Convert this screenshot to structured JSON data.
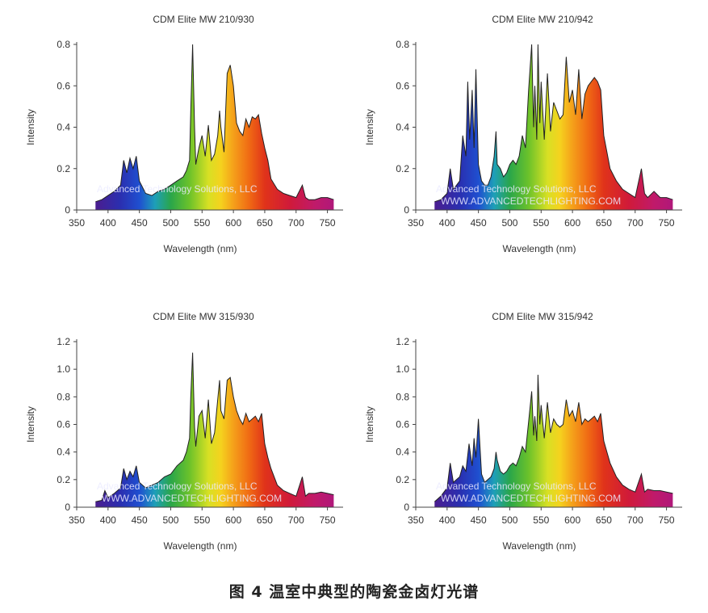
{
  "figure": {
    "caption": "图 4 温室中典型的陶瓷金卤灯光谱"
  },
  "colors": {
    "axis": "#444444",
    "outline": "#222222"
  },
  "chart_data": [
    {
      "type": "area",
      "title": "CDM Elite MW 210/930",
      "xlabel": "Wavelength (nm)",
      "ylabel": "Intensity",
      "xlim": [
        350,
        775
      ],
      "ylim": [
        0,
        0.8
      ],
      "xticks": [
        350,
        400,
        450,
        500,
        550,
        600,
        650,
        700,
        750
      ],
      "yticks": [
        0,
        0.2,
        0.4,
        0.6,
        0.8
      ],
      "ytick_labels": [
        "0",
        "0.2",
        "0.4",
        "0.6",
        "0.8"
      ],
      "watermark": [
        "Advanced Technology Solutions, LLC"
      ],
      "x": [
        380,
        390,
        400,
        410,
        420,
        425,
        430,
        435,
        440,
        445,
        450,
        460,
        470,
        480,
        490,
        500,
        510,
        520,
        525,
        530,
        532,
        535,
        538,
        540,
        545,
        550,
        555,
        560,
        565,
        570,
        575,
        578,
        580,
        585,
        590,
        595,
        600,
        605,
        610,
        615,
        620,
        625,
        630,
        635,
        640,
        645,
        650,
        655,
        660,
        670,
        680,
        690,
        700,
        710,
        715,
        720,
        730,
        740,
        750,
        760
      ],
      "y": [
        0.04,
        0.05,
        0.07,
        0.09,
        0.12,
        0.24,
        0.18,
        0.25,
        0.2,
        0.26,
        0.14,
        0.08,
        0.07,
        0.09,
        0.1,
        0.12,
        0.14,
        0.16,
        0.19,
        0.24,
        0.48,
        0.8,
        0.4,
        0.22,
        0.3,
        0.36,
        0.26,
        0.41,
        0.24,
        0.27,
        0.36,
        0.48,
        0.4,
        0.28,
        0.66,
        0.7,
        0.6,
        0.42,
        0.38,
        0.36,
        0.44,
        0.4,
        0.45,
        0.44,
        0.46,
        0.37,
        0.3,
        0.24,
        0.15,
        0.1,
        0.08,
        0.07,
        0.06,
        0.12,
        0.06,
        0.05,
        0.05,
        0.06,
        0.06,
        0.05
      ]
    },
    {
      "type": "area",
      "title": "CDM Elite MW 210/942",
      "xlabel": "Wavelength (nm)",
      "ylabel": "Intensity",
      "xlim": [
        350,
        775
      ],
      "ylim": [
        0,
        0.8
      ],
      "xticks": [
        350,
        400,
        450,
        500,
        550,
        600,
        650,
        700,
        750
      ],
      "yticks": [
        0,
        0.2,
        0.4,
        0.6,
        0.8
      ],
      "ytick_labels": [
        "0",
        "0.2",
        "0.4",
        "0.6",
        "0.8"
      ],
      "watermark": [
        "Advanced Technology Solutions, LLC",
        "WWW.ADVANCEDTECHLIGHTING.COM"
      ],
      "x": [
        380,
        390,
        400,
        405,
        410,
        415,
        420,
        425,
        430,
        433,
        436,
        440,
        443,
        446,
        450,
        455,
        460,
        465,
        470,
        475,
        478,
        480,
        485,
        490,
        495,
        500,
        505,
        510,
        515,
        520,
        525,
        530,
        535,
        538,
        540,
        543,
        545,
        548,
        550,
        555,
        560,
        565,
        570,
        575,
        580,
        585,
        590,
        595,
        600,
        605,
        610,
        615,
        620,
        625,
        630,
        635,
        640,
        645,
        650,
        655,
        660,
        670,
        680,
        690,
        700,
        710,
        715,
        720,
        730,
        740,
        750,
        760
      ],
      "y": [
        0.04,
        0.05,
        0.08,
        0.2,
        0.1,
        0.12,
        0.14,
        0.36,
        0.26,
        0.62,
        0.34,
        0.58,
        0.3,
        0.68,
        0.22,
        0.14,
        0.12,
        0.12,
        0.16,
        0.26,
        0.38,
        0.22,
        0.2,
        0.16,
        0.18,
        0.22,
        0.24,
        0.22,
        0.26,
        0.36,
        0.3,
        0.58,
        0.8,
        0.4,
        0.6,
        0.34,
        0.8,
        0.42,
        0.62,
        0.34,
        0.66,
        0.38,
        0.52,
        0.48,
        0.44,
        0.46,
        0.74,
        0.52,
        0.58,
        0.46,
        0.68,
        0.44,
        0.56,
        0.6,
        0.62,
        0.64,
        0.62,
        0.58,
        0.36,
        0.28,
        0.2,
        0.14,
        0.1,
        0.08,
        0.06,
        0.2,
        0.08,
        0.06,
        0.09,
        0.06,
        0.06,
        0.05
      ]
    },
    {
      "type": "area",
      "title": "CDM Elite MW 315/930",
      "xlabel": "Wavelength (nm)",
      "ylabel": "Intensity",
      "xlim": [
        350,
        775
      ],
      "ylim": [
        0,
        1.2
      ],
      "xticks": [
        350,
        400,
        450,
        500,
        550,
        600,
        650,
        700,
        750
      ],
      "yticks": [
        0,
        0.2,
        0.4,
        0.6,
        0.8,
        1.0,
        1.2
      ],
      "ytick_labels": [
        "0",
        "0.2",
        "0.4",
        "0.6",
        "0.8",
        "1.0",
        "1.2"
      ],
      "watermark": [
        "Advanced Technology Solutions, LLC",
        "WWW.ADVANCEDTECHLIGHTING.COM"
      ],
      "x": [
        380,
        390,
        395,
        400,
        410,
        420,
        425,
        430,
        435,
        440,
        445,
        450,
        460,
        470,
        480,
        490,
        500,
        510,
        520,
        525,
        530,
        532,
        535,
        538,
        540,
        545,
        550,
        555,
        560,
        565,
        570,
        575,
        578,
        580,
        585,
        590,
        595,
        600,
        605,
        610,
        615,
        620,
        625,
        630,
        635,
        640,
        645,
        650,
        655,
        660,
        670,
        680,
        690,
        700,
        710,
        715,
        720,
        730,
        740,
        750,
        760
      ],
      "y": [
        0.04,
        0.05,
        0.12,
        0.07,
        0.1,
        0.14,
        0.28,
        0.2,
        0.26,
        0.22,
        0.3,
        0.18,
        0.14,
        0.16,
        0.18,
        0.22,
        0.24,
        0.3,
        0.34,
        0.4,
        0.5,
        0.8,
        1.12,
        0.58,
        0.44,
        0.66,
        0.7,
        0.5,
        0.78,
        0.46,
        0.54,
        0.78,
        0.92,
        0.7,
        0.64,
        0.92,
        0.94,
        0.8,
        0.7,
        0.64,
        0.6,
        0.68,
        0.62,
        0.64,
        0.66,
        0.62,
        0.68,
        0.46,
        0.36,
        0.28,
        0.16,
        0.12,
        0.1,
        0.08,
        0.22,
        0.08,
        0.1,
        0.1,
        0.11,
        0.1,
        0.09
      ]
    },
    {
      "type": "area",
      "title": "CDM Elite MW 315/942",
      "xlabel": "Wavelength (nm)",
      "ylabel": "Intensity",
      "xlim": [
        350,
        775
      ],
      "ylim": [
        0,
        1.2
      ],
      "xticks": [
        350,
        400,
        450,
        500,
        550,
        600,
        650,
        700,
        750
      ],
      "yticks": [
        0,
        0.2,
        0.4,
        0.6,
        0.8,
        1.0,
        1.2
      ],
      "ytick_labels": [
        "0",
        "0.2",
        "0.4",
        "0.6",
        "0.8",
        "1.0",
        "1.2"
      ],
      "watermark": [
        "Advanced Technology Solutions, LLC",
        "WWW.ADVANCEDTECHLIGHTING.COM"
      ],
      "x": [
        380,
        390,
        400,
        405,
        410,
        415,
        420,
        425,
        430,
        435,
        440,
        443,
        446,
        450,
        455,
        460,
        465,
        470,
        475,
        478,
        480,
        485,
        490,
        495,
        500,
        505,
        510,
        515,
        520,
        525,
        530,
        535,
        538,
        540,
        543,
        545,
        548,
        550,
        555,
        560,
        565,
        570,
        575,
        580,
        585,
        590,
        595,
        600,
        605,
        610,
        615,
        620,
        625,
        630,
        635,
        640,
        645,
        650,
        655,
        660,
        670,
        680,
        690,
        700,
        710,
        715,
        720,
        730,
        740,
        750,
        760
      ],
      "y": [
        0.04,
        0.08,
        0.14,
        0.32,
        0.18,
        0.2,
        0.22,
        0.3,
        0.26,
        0.46,
        0.3,
        0.5,
        0.36,
        0.64,
        0.24,
        0.18,
        0.2,
        0.22,
        0.28,
        0.4,
        0.34,
        0.26,
        0.24,
        0.26,
        0.3,
        0.32,
        0.3,
        0.36,
        0.44,
        0.4,
        0.62,
        0.84,
        0.52,
        0.66,
        0.48,
        0.96,
        0.6,
        0.74,
        0.5,
        0.76,
        0.54,
        0.64,
        0.6,
        0.58,
        0.6,
        0.78,
        0.66,
        0.7,
        0.62,
        0.76,
        0.6,
        0.64,
        0.62,
        0.64,
        0.66,
        0.62,
        0.68,
        0.48,
        0.4,
        0.32,
        0.22,
        0.16,
        0.13,
        0.11,
        0.24,
        0.11,
        0.13,
        0.12,
        0.12,
        0.11,
        0.1
      ]
    }
  ]
}
